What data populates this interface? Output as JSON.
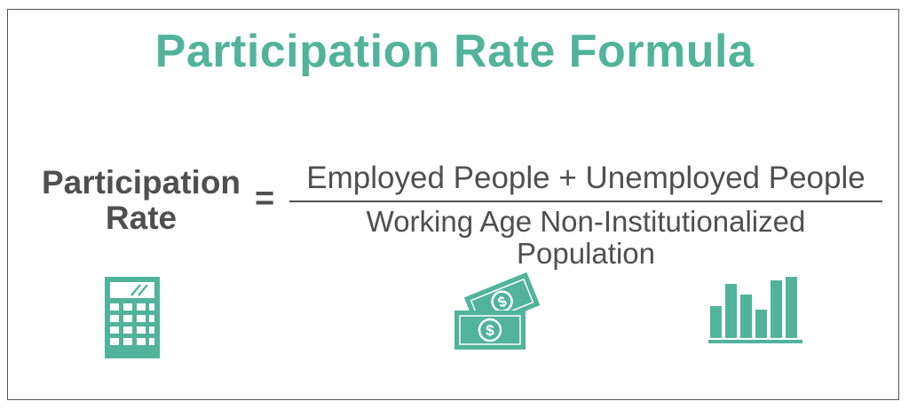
{
  "title": "Participation Rate Formula",
  "formula": {
    "lhs_line1": "Participation",
    "lhs_line2": "Rate",
    "equals": "=",
    "numerator": "Employed People + Unemployed People",
    "denominator_line1": "Working Age Non-Institutionalized",
    "denominator_line2": "Population"
  },
  "icons": [
    "calculator-icon",
    "money-icon",
    "bar-chart-icon"
  ],
  "colors": {
    "accent": "#52b39b",
    "text": "#4f4f4f",
    "border": "#555555"
  }
}
